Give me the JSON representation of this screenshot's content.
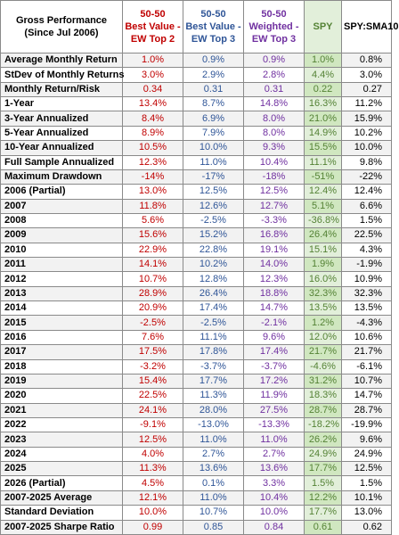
{
  "headers": {
    "title": [
      "Gross Performance",
      "(Since Jul 2006)"
    ],
    "best2": [
      "50-50",
      "Best Value -",
      "EW Top 2"
    ],
    "best3": [
      "50-50",
      "Best Value -",
      "EW Top 3"
    ],
    "weighted": [
      "50-50",
      "Weighted -",
      "EW Top 3"
    ],
    "spy": "SPY",
    "sma": "SPY:SMA10"
  },
  "colors": {
    "best2": "#c00000",
    "best3": "#2f5597",
    "weighted": "#7030a0",
    "spy": "#548235",
    "spy_bg": "#e2efda",
    "stripe": "#f2f2f2"
  },
  "rows": [
    {
      "label": "Average Monthly Return",
      "best2": "1.0%",
      "best3": "0.9%",
      "weighted": "0.9%",
      "spy": "1.0%",
      "sma": "0.8%"
    },
    {
      "label": "StDev of Monthly Returns",
      "best2": "3.0%",
      "best3": "2.9%",
      "weighted": "2.8%",
      "spy": "4.4%",
      "sma": "3.0%"
    },
    {
      "label": "Monthly Return/Risk",
      "best2": "0.34",
      "best3": "0.31",
      "weighted": "0.31",
      "spy": "0.22",
      "sma": "0.27"
    },
    {
      "label": "1-Year",
      "best2": "13.4%",
      "best3": "8.7%",
      "weighted": "14.8%",
      "spy": "16.3%",
      "sma": "11.2%"
    },
    {
      "label": "3-Year Annualized",
      "best2": "8.4%",
      "best3": "6.9%",
      "weighted": "8.0%",
      "spy": "21.0%",
      "sma": "15.9%"
    },
    {
      "label": "5-Year Annualized",
      "best2": "8.9%",
      "best3": "7.9%",
      "weighted": "8.0%",
      "spy": "14.9%",
      "sma": "10.2%"
    },
    {
      "label": "10-Year Annualized",
      "best2": "10.5%",
      "best3": "10.0%",
      "weighted": "9.3%",
      "spy": "15.5%",
      "sma": "10.0%"
    },
    {
      "label": "Full Sample Annualized",
      "best2": "12.3%",
      "best3": "11.0%",
      "weighted": "10.4%",
      "spy": "11.1%",
      "sma": "9.8%"
    },
    {
      "label": "Maximum Drawdown",
      "best2": "-14%",
      "best3": "-17%",
      "weighted": "-18%",
      "spy": "-51%",
      "sma": "-22%"
    },
    {
      "label": "2006 (Partial)",
      "best2": "13.0%",
      "best3": "12.5%",
      "weighted": "12.5%",
      "spy": "12.4%",
      "sma": "12.4%"
    },
    {
      "label": "2007",
      "best2": "11.8%",
      "best3": "12.6%",
      "weighted": "12.7%",
      "spy": "5.1%",
      "sma": "6.6%"
    },
    {
      "label": "2008",
      "best2": "5.6%",
      "best3": "-2.5%",
      "weighted": "-3.3%",
      "spy": "-36.8%",
      "sma": "1.5%"
    },
    {
      "label": "2009",
      "best2": "15.6%",
      "best3": "15.2%",
      "weighted": "16.8%",
      "spy": "26.4%",
      "sma": "22.5%"
    },
    {
      "label": "2010",
      "best2": "22.9%",
      "best3": "22.8%",
      "weighted": "19.1%",
      "spy": "15.1%",
      "sma": "4.3%"
    },
    {
      "label": "2011",
      "best2": "14.1%",
      "best3": "10.2%",
      "weighted": "14.0%",
      "spy": "1.9%",
      "sma": "-1.9%"
    },
    {
      "label": "2012",
      "best2": "10.7%",
      "best3": "12.8%",
      "weighted": "12.3%",
      "spy": "16.0%",
      "sma": "10.9%"
    },
    {
      "label": "2013",
      "best2": "28.9%",
      "best3": "26.4%",
      "weighted": "18.8%",
      "spy": "32.3%",
      "sma": "32.3%"
    },
    {
      "label": "2014",
      "best2": "20.9%",
      "best3": "17.4%",
      "weighted": "14.7%",
      "spy": "13.5%",
      "sma": "13.5%"
    },
    {
      "label": "2015",
      "best2": "-2.5%",
      "best3": "-2.5%",
      "weighted": "-2.1%",
      "spy": "1.2%",
      "sma": "-4.3%"
    },
    {
      "label": "2016",
      "best2": "7.6%",
      "best3": "11.1%",
      "weighted": "9.6%",
      "spy": "12.0%",
      "sma": "10.6%"
    },
    {
      "label": "2017",
      "best2": "17.5%",
      "best3": "17.8%",
      "weighted": "17.4%",
      "spy": "21.7%",
      "sma": "21.7%"
    },
    {
      "label": "2018",
      "best2": "-3.2%",
      "best3": "-3.7%",
      "weighted": "-3.7%",
      "spy": "-4.6%",
      "sma": "-6.1%"
    },
    {
      "label": "2019",
      "best2": "15.4%",
      "best3": "17.7%",
      "weighted": "17.2%",
      "spy": "31.2%",
      "sma": "10.7%"
    },
    {
      "label": "2020",
      "best2": "22.5%",
      "best3": "11.3%",
      "weighted": "11.9%",
      "spy": "18.3%",
      "sma": "14.7%"
    },
    {
      "label": "2021",
      "best2": "24.1%",
      "best3": "28.0%",
      "weighted": "27.5%",
      "spy": "28.7%",
      "sma": "28.7%"
    },
    {
      "label": "2022",
      "best2": "-9.1%",
      "best3": "-13.0%",
      "weighted": "-13.3%",
      "spy": "-18.2%",
      "sma": "-19.9%"
    },
    {
      "label": "2023",
      "best2": "12.5%",
      "best3": "11.0%",
      "weighted": "11.0%",
      "spy": "26.2%",
      "sma": "9.6%"
    },
    {
      "label": "2024",
      "best2": "4.0%",
      "best3": "2.7%",
      "weighted": "2.7%",
      "spy": "24.9%",
      "sma": "24.9%"
    },
    {
      "label": "2025",
      "best2": "11.3%",
      "best3": "13.6%",
      "weighted": "13.6%",
      "spy": "17.7%",
      "sma": "12.5%"
    },
    {
      "label": "2026 (Partial)",
      "best2": "4.5%",
      "best3": "0.1%",
      "weighted": "3.3%",
      "spy": "1.5%",
      "sma": "1.5%"
    },
    {
      "label": "2007-2025 Average",
      "best2": "12.1%",
      "best3": "11.0%",
      "weighted": "10.4%",
      "spy": "12.2%",
      "sma": "10.1%"
    },
    {
      "label": "Standard Deviation",
      "best2": "10.0%",
      "best3": "10.7%",
      "weighted": "10.0%",
      "spy": "17.7%",
      "sma": "13.0%"
    },
    {
      "label": "2007-2025 Sharpe Ratio",
      "best2": "0.99",
      "best3": "0.85",
      "weighted": "0.84",
      "spy": "0.61",
      "sma": "0.62"
    }
  ]
}
